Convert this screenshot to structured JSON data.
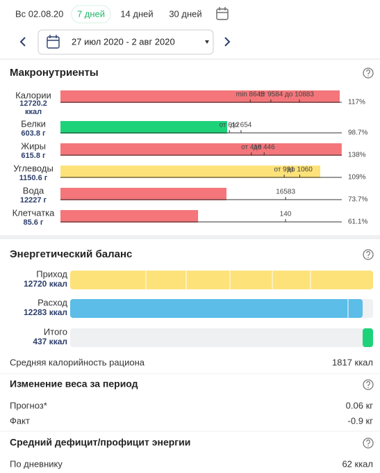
{
  "header": {
    "date": "Вс 02.08.20",
    "tabs": [
      "7 дней",
      "14 дней",
      "30 дней"
    ],
    "active_tab": 0,
    "range": "27 июл 2020 - 2 авг 2020"
  },
  "macros": {
    "title": "Макронутриенты",
    "rows": [
      {
        "name": "Калории",
        "value": 12720.2,
        "value_label": "12720.2",
        "unit": "ккал",
        "xlim": [
          0,
          12815
        ],
        "color": "#f4767a",
        "markers": [
          {
            "value": 8645,
            "label": "min 8645"
          },
          {
            "value": 9584,
            "label": "от 9584"
          },
          {
            "value": 10883,
            "label": "до 10883"
          }
        ],
        "percent_label": "117%"
      },
      {
        "name": "Белки",
        "value": 603.8,
        "value_label": "603.8 г",
        "xlim": [
          0,
          1019
        ],
        "color": "#1ed27a",
        "markers": [
          {
            "value": 612,
            "label": "от 612"
          },
          {
            "value": 654,
            "label": "до 654"
          }
        ],
        "percent_label": "98.7%"
      },
      {
        "name": "Жиры",
        "value": 615.8,
        "value_label": "615.8 г",
        "xlim": [
          0,
          616
        ],
        "color": "#f4767a",
        "markers": [
          {
            "value": 418,
            "label": "от 418"
          },
          {
            "value": 446,
            "label": "до 446"
          }
        ],
        "percent_label": "138%"
      },
      {
        "name": "Углеводы",
        "value": 1150.6,
        "value_label": "1150.6 г",
        "xlim": [
          0,
          1246
        ],
        "color": "#fde27a",
        "markers": [
          {
            "value": 991,
            "label": "от 991"
          },
          {
            "value": 1060,
            "label": "до 1060"
          }
        ],
        "percent_label": "109%"
      },
      {
        "name": "Вода",
        "value": 12227,
        "value_label": "12227 г",
        "xlim": [
          0,
          20720
        ],
        "color": "#f4767a",
        "markers": [
          16583
        ],
        "percent_label": "73.7%"
      },
      {
        "name": "Клетчатка",
        "value": 85.6,
        "value_label": "85.6 г",
        "xlim": [
          0,
          175
        ],
        "color": "#f4767a",
        "markers": [
          140
        ],
        "percent_label": "61.1%"
      }
    ]
  },
  "energy": {
    "title": "Энергетический баланс",
    "xlim": [
      0,
      12720
    ],
    "rows": [
      {
        "name": "Приход",
        "value": 12720,
        "value_label": "12720 ккал",
        "color": "#fde27a"
      },
      {
        "name": "Расход",
        "value": 12283,
        "value_label": "12283 ккал",
        "color": "#5bbde8"
      },
      {
        "name": "Итого",
        "value": 437,
        "value_label": "437 ккал",
        "color": "#1ed27a"
      }
    ],
    "avg_label": "Средняя калорийность рациона",
    "avg_value": "1817 ккал"
  },
  "weight": {
    "title": "Изменение веса за период",
    "rows": [
      [
        "Прогноз*",
        "0.06 кг"
      ],
      [
        "Факт",
        "-0.9 кг"
      ]
    ]
  },
  "deficit": {
    "title": "Средний дефицит/профицит энергии",
    "rows": [
      [
        "По дневнику",
        "62 ккал"
      ]
    ]
  }
}
